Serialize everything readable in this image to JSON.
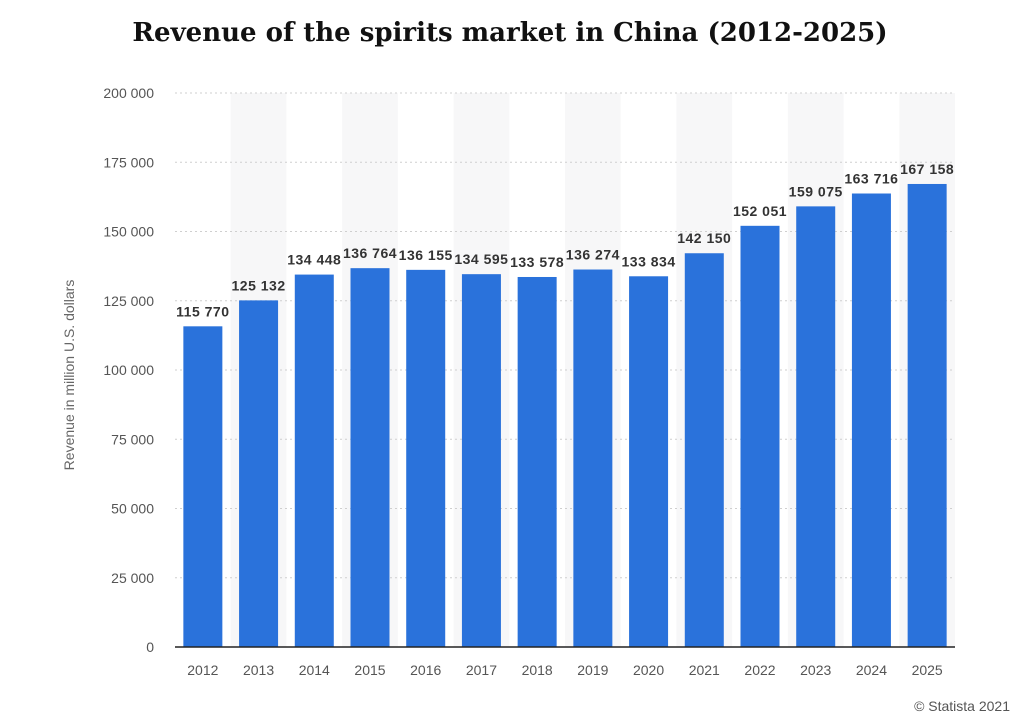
{
  "chart_data": {
    "type": "bar",
    "title": "Revenue of the spirits market in China (2012-2025)",
    "xlabel": "",
    "ylabel": "Revenue in million U.S. dollars",
    "ylim": [
      0,
      200000
    ],
    "yticks": [
      0,
      25000,
      50000,
      75000,
      100000,
      125000,
      150000,
      175000,
      200000
    ],
    "ytick_labels": [
      "0",
      "25 000",
      "50 000",
      "75 000",
      "100 000",
      "125 000",
      "150 000",
      "175 000",
      "200 000"
    ],
    "categories": [
      "2012",
      "2013",
      "2014",
      "2015",
      "2016",
      "2017",
      "2018",
      "2019",
      "2020",
      "2021",
      "2022",
      "2023",
      "2024",
      "2025"
    ],
    "values": [
      115770,
      125132,
      134448,
      136764,
      136155,
      134595,
      133578,
      136274,
      133834,
      142150,
      152051,
      159075,
      163716,
      167158
    ],
    "data_labels": [
      "115 770",
      "125 132",
      "134 448",
      "136 764",
      "136 155",
      "134 595",
      "133 578",
      "136 274",
      "133 834",
      "142 150",
      "152 051",
      "159 075",
      "163 716",
      "167 158"
    ],
    "grid": true,
    "legend": "none",
    "bar_color": "#2a72db"
  },
  "credit": "© Statista 2021"
}
